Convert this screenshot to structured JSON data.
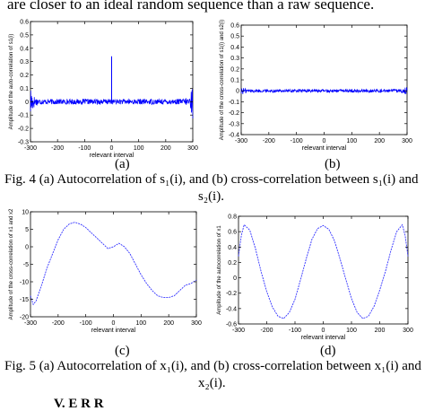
{
  "header_text": "are closer to an ideal random sequence than a raw sequence.",
  "fig4": {
    "caption_line1": "Fig. 4 (a) Autocorrelation of s₁(i), and (b) cross-correlation between s₁(i) and",
    "caption_line2": "s₂(i).",
    "sub_a": "(a)",
    "sub_b": "(b)"
  },
  "fig5": {
    "caption_line1": "Fig. 5 (a) Autocorrelation of x₁(i), and (b) cross-correlation between x₁(i) and",
    "caption_line2": "x₂(i).",
    "sub_c": "(c)",
    "sub_d": "(d)"
  },
  "bottom_fragment": "V. E                    R                R",
  "chart_data": [
    {
      "panel": "(a)",
      "type": "line",
      "xlabel": "relevant interval",
      "ylabel": "Amplitude of the auto-correlation of s1(i)",
      "xlim": [
        -300,
        300
      ],
      "ylim": [
        -0.3,
        0.6
      ],
      "xticks": [
        -300,
        -200,
        -100,
        0,
        100,
        200,
        300
      ],
      "yticks": [
        -0.3,
        -0.2,
        -0.1,
        0,
        0.1,
        0.2,
        0.3,
        0.4,
        0.5,
        0.6
      ],
      "xtick_labels": [
        "-300",
        "-200",
        "-100",
        "0",
        "100",
        "200",
        "300"
      ],
      "ytick_labels": [
        "-0.3",
        "-0.2",
        "-0.1",
        "0",
        "0.1",
        "0.2",
        "0.3",
        "0.4",
        "0.5",
        "0.6"
      ],
      "color": "#0000ff",
      "noise_amplitude": 0.02,
      "edge_amplitude": 0.12,
      "spike": {
        "x": 0,
        "y": 0.34
      }
    },
    {
      "panel": "(b)",
      "type": "line",
      "xlabel": "relevant interval",
      "ylabel": "Amplitude of the cross-correlation of s1(i) and s2(i)",
      "xlim": [
        -300,
        300
      ],
      "ylim": [
        -0.4,
        0.6
      ],
      "xticks": [
        -300,
        -200,
        -100,
        0,
        100,
        200,
        300
      ],
      "yticks": [
        -0.4,
        -0.3,
        -0.2,
        -0.1,
        0,
        0.1,
        0.2,
        0.3,
        0.4,
        0.5,
        0.6
      ],
      "xtick_labels": [
        "-300",
        "-200",
        "-100",
        "0",
        "100",
        "200",
        "300"
      ],
      "ytick_labels": [
        "-0.4",
        "-0.3",
        "-0.2",
        "-0.1",
        "0",
        "0.1",
        "0.2",
        "0.3",
        "0.4",
        "0.5",
        "0.6"
      ],
      "color": "#0000ff",
      "noise_amplitude": 0.015,
      "edge_amplitude": 0.035
    },
    {
      "panel": "(c)",
      "type": "line",
      "xlabel": "relevant interval",
      "ylabel": "Amplitude of the cross-correlation of x1 and x2",
      "xlim": [
        -300,
        300
      ],
      "ylim": [
        -20,
        10
      ],
      "xticks": [
        -300,
        -200,
        -100,
        0,
        100,
        200,
        300
      ],
      "yticks": [
        -20,
        -15,
        -10,
        -5,
        0,
        5,
        10
      ],
      "xtick_labels": [
        "-300",
        "-200",
        "-100",
        "0",
        "100",
        "200",
        "300"
      ],
      "ytick_labels": [
        "-20",
        "-15",
        "-10",
        "-5",
        "0",
        "5",
        "10"
      ],
      "color": "#3333ff",
      "x": [
        -300,
        -290,
        -280,
        -260,
        -240,
        -220,
        -200,
        -180,
        -160,
        -140,
        -120,
        -100,
        -80,
        -60,
        -40,
        -20,
        0,
        20,
        40,
        60,
        80,
        100,
        120,
        140,
        160,
        180,
        200,
        220,
        240,
        260,
        280,
        300
      ],
      "y": [
        -14,
        -16.5,
        -15.5,
        -11,
        -6,
        -2,
        2,
        5,
        6.5,
        7,
        6.5,
        5.5,
        4,
        2.5,
        1,
        -0.5,
        0,
        1,
        0,
        -2,
        -5,
        -8,
        -10.5,
        -12.5,
        -14,
        -14.5,
        -14.5,
        -14,
        -12.5,
        -11,
        -10.5,
        -9.5
      ]
    },
    {
      "panel": "(d)",
      "type": "line",
      "xlabel": "relevant interval",
      "ylabel": "Amplitude of the autocorrelation of x1",
      "xlim": [
        -300,
        300
      ],
      "ylim": [
        -0.6,
        0.8
      ],
      "xticks": [
        -300,
        -200,
        -100,
        0,
        100,
        200,
        300
      ],
      "yticks": [
        -0.6,
        -0.4,
        -0.2,
        0,
        0.2,
        0.4,
        0.6,
        0.8
      ],
      "xtick_labels": [
        "-300",
        "-200",
        "-100",
        "0",
        "100",
        "200",
        "300"
      ],
      "ytick_labels": [
        "-0.6",
        "-0.4",
        "-0.2",
        "0",
        "0.2",
        "0.4",
        "0.6",
        "0.8"
      ],
      "color": "#3333ff",
      "x": [
        -300,
        -290,
        -280,
        -260,
        -240,
        -220,
        -200,
        -180,
        -160,
        -140,
        -120,
        -100,
        -80,
        -60,
        -40,
        -20,
        0,
        20,
        40,
        60,
        80,
        100,
        120,
        140,
        160,
        180,
        200,
        220,
        240,
        260,
        280,
        290,
        300
      ],
      "y": [
        0.28,
        0.55,
        0.69,
        0.62,
        0.38,
        0.08,
        -0.18,
        -0.38,
        -0.5,
        -0.53,
        -0.45,
        -0.28,
        -0.02,
        0.25,
        0.5,
        0.64,
        0.68,
        0.63,
        0.48,
        0.24,
        -0.02,
        -0.27,
        -0.45,
        -0.53,
        -0.5,
        -0.37,
        -0.16,
        0.08,
        0.36,
        0.6,
        0.69,
        0.55,
        0.28
      ]
    }
  ]
}
